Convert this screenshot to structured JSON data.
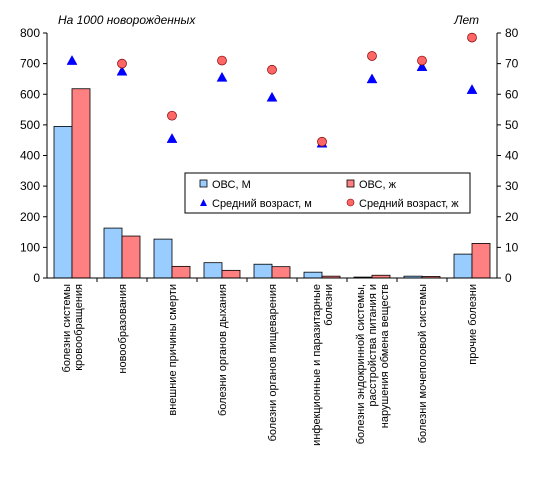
{
  "chart_data": {
    "type": "bar",
    "left_axis_title": "На 1000 новорожденных",
    "right_axis_title": "Лет",
    "left_ylim": [
      0,
      800
    ],
    "left_ticks": [
      "0",
      "100",
      "200",
      "300",
      "400",
      "500",
      "600",
      "700",
      "800"
    ],
    "right_ylim": [
      0,
      80
    ],
    "right_ticks": [
      "0",
      "10",
      "20",
      "30",
      "40",
      "50",
      "60",
      "70",
      "80"
    ],
    "grid": false,
    "legend_position": "center-right",
    "categories": [
      "болезни системы кровообращения",
      "новообразования",
      "внешние причины смерти",
      "болезни органов дыхания",
      "болезни органов пищеварения",
      "инфекционные и паразитарные болезни",
      "болезни эндокринной системы, расстройства питания и нарушения обмена веществ",
      "болезни мочеполовой системы",
      "прочие болезни"
    ],
    "category_label_lines": [
      [
        "болезни системы",
        "кровообращения"
      ],
      [
        "новообразования"
      ],
      [
        "внешние причины смерти"
      ],
      [
        "болезни органов дыхания"
      ],
      [
        "болезни органов пищеварения"
      ],
      [
        "инфекционные и паразитарные",
        "болезни"
      ],
      [
        "болезни эндокринной системы,",
        "расстройства питания и",
        "нарушения обмена веществ"
      ],
      [
        "болезни мочеполовой системы"
      ],
      [
        "прочие болезни"
      ]
    ],
    "series": [
      {
        "name": "ОВС,  М",
        "axis": "left",
        "kind": "bar",
        "color": "#99ccff",
        "values": [
          495,
          163,
          127,
          50,
          45,
          19,
          3,
          6,
          78
        ]
      },
      {
        "name": "ОВС,  ж",
        "axis": "left",
        "kind": "bar",
        "color": "#ff8080",
        "values": [
          618,
          137,
          38,
          25,
          37,
          6,
          9,
          5,
          113
        ]
      },
      {
        "name": "Средний  возраст, м",
        "axis": "right",
        "kind": "triangle",
        "color": "#0000ff",
        "values": [
          71,
          67.5,
          45.5,
          65.5,
          59,
          44,
          65,
          69,
          61.5
        ]
      },
      {
        "name": "Средний  возраст, ж",
        "axis": "right",
        "kind": "circle",
        "color": "#ff6666",
        "values": [
          null,
          70,
          53,
          71,
          68,
          44.5,
          72.5,
          71,
          78.5
        ]
      }
    ]
  }
}
